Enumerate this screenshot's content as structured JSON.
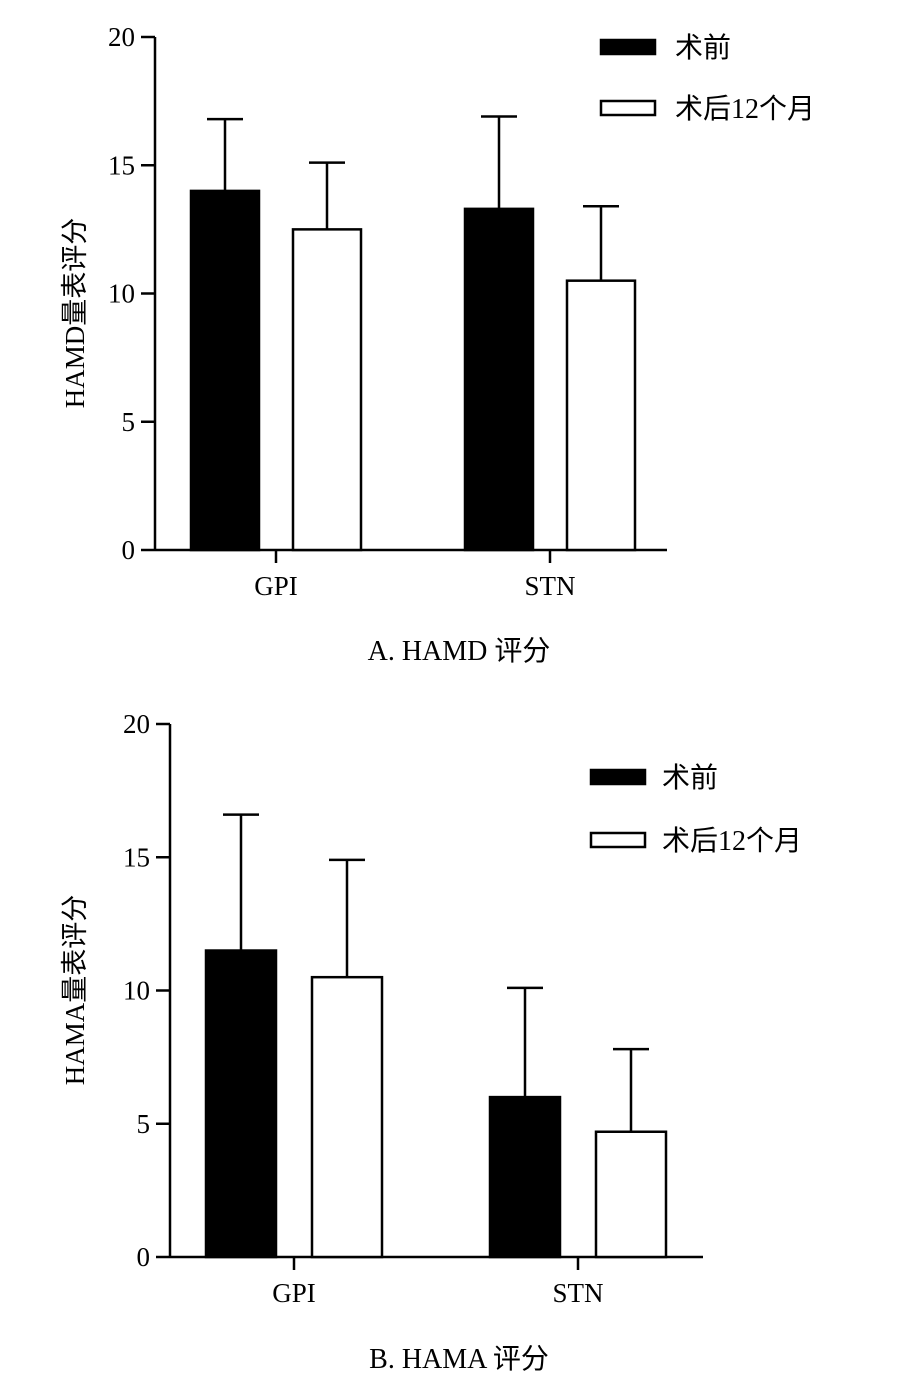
{
  "chart_data": [
    {
      "type": "bar",
      "caption": "A. HAMD 评分",
      "title": "",
      "xlabel": "",
      "ylabel": "HAMD量表评分",
      "ylim": [
        0,
        20
      ],
      "yticks": [
        "0",
        "5",
        "10",
        "15",
        "20"
      ],
      "categories": [
        "GPI",
        "STN"
      ],
      "error_bars": true,
      "legend_position": "top-right",
      "series": [
        {
          "name": "术前",
          "values": [
            14.0,
            13.3
          ],
          "errors": [
            2.8,
            3.6
          ],
          "color": "#000000"
        },
        {
          "name": "术后12个月",
          "values": [
            12.5,
            10.5
          ],
          "errors": [
            2.6,
            2.9
          ],
          "color": "#ffffff"
        }
      ]
    },
    {
      "type": "bar",
      "caption": "B. HAMA 评分",
      "title": "",
      "xlabel": "",
      "ylabel": "HAMA量表评分",
      "ylim": [
        0,
        20
      ],
      "yticks": [
        "0",
        "5",
        "10",
        "15",
        "20"
      ],
      "categories": [
        "GPI",
        "STN"
      ],
      "error_bars": true,
      "legend_position": "top-right",
      "series": [
        {
          "name": "术前",
          "values": [
            11.5,
            6.0
          ],
          "errors": [
            5.1,
            4.1
          ],
          "color": "#000000"
        },
        {
          "name": "术后12个月",
          "values": [
            10.5,
            4.7
          ],
          "errors": [
            4.4,
            3.1
          ],
          "color": "#ffffff"
        }
      ]
    }
  ]
}
